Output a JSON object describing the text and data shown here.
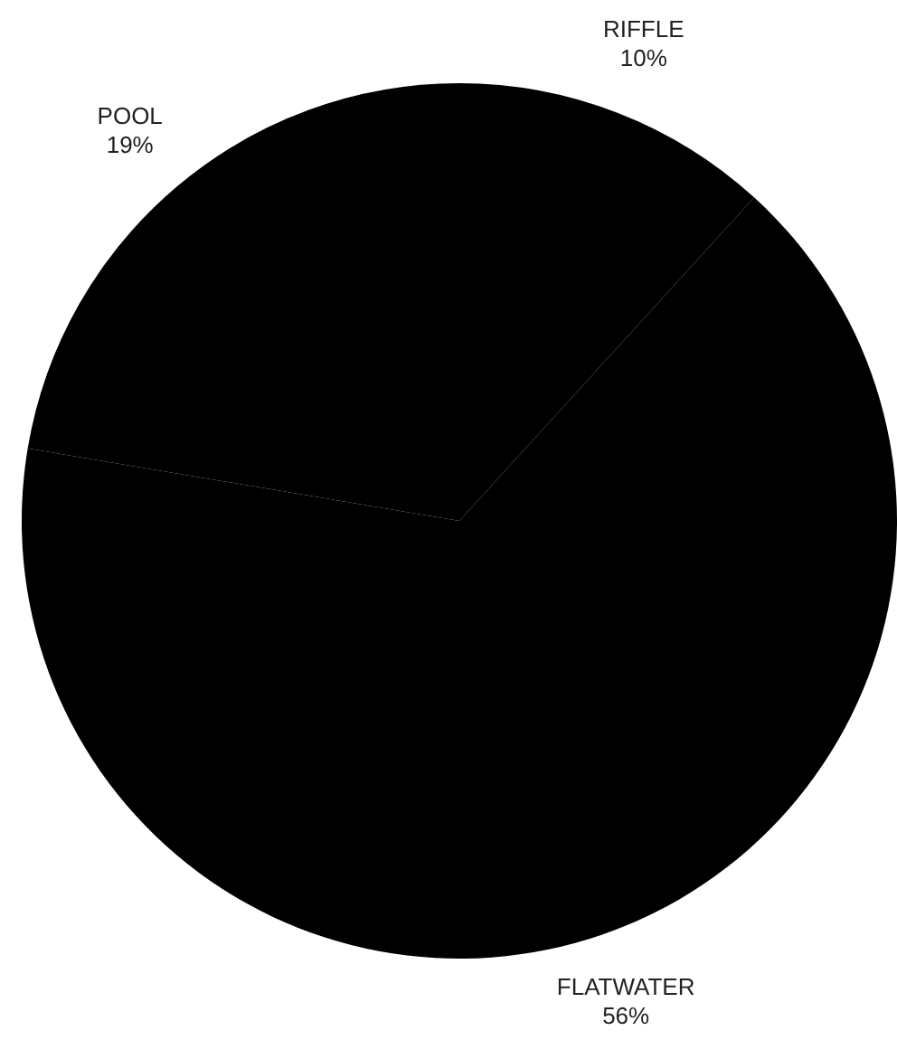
{
  "chart_data": {
    "type": "pie",
    "categories": [
      "RIFFLE",
      "FLATWATER",
      "POOL"
    ],
    "values": [
      10,
      56,
      19
    ],
    "colors": [
      "#000000",
      "#000000",
      "#000000"
    ],
    "value_labels": [
      "10%",
      "56%",
      "19%"
    ],
    "legend": false
  }
}
